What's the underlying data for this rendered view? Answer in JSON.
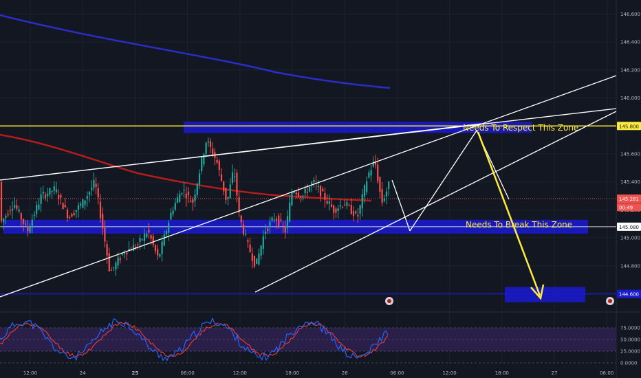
{
  "chart_data": {
    "type": "candlestick",
    "theme": {
      "background": "#131722",
      "grid": "#1e2230",
      "up": "#26a69a",
      "down": "#ef5350",
      "ma_red": "#b71c1c",
      "ma_blue": "#2a2ec9",
      "zone": "#1a1ad0",
      "level_yellow": "#ffeb3b",
      "osc_bg": "#2a1f48",
      "osc_fast": "#2962ff",
      "osc_slow": "#e53935",
      "trend": "#ffffff",
      "arrow": "#ffeb3b"
    },
    "price_axis": {
      "min": 144.5,
      "max": 146.7,
      "ticks": [
        "146.600",
        "146.400",
        "146.200",
        "146.000",
        "145.800",
        "145.600",
        "145.400",
        "145.200",
        "145.000",
        "144.800",
        "144.600"
      ],
      "tick_values": [
        146.6,
        146.4,
        146.2,
        146.0,
        145.8,
        145.6,
        145.4,
        145.2,
        145.0,
        144.8,
        144.6
      ]
    },
    "price_labels": [
      {
        "value": 145.8,
        "text": "145.800",
        "bg": "#ffeb3b",
        "fg": "#131722"
      },
      {
        "value": 145.281,
        "text": "145.281",
        "bg": "#ef5350",
        "fg": "#ffffff"
      },
      {
        "value": 145.22,
        "text": "00:49",
        "bg": "#ef5350",
        "fg": "#ffffff"
      },
      {
        "value": 145.08,
        "text": "145.080",
        "bg": "#ffffff",
        "fg": "#131722"
      },
      {
        "value": 144.6,
        "text": "144.600",
        "bg": "#1a1ad0",
        "fg": "#ffffff"
      }
    ],
    "time_axis": {
      "labels": [
        "12:00",
        "24",
        "25",
        "06:00",
        "12:00",
        "18:00",
        "26",
        "06:00",
        "12:00",
        "18:00",
        "27",
        "06:00"
      ],
      "bold": [
        false,
        false,
        true,
        false,
        false,
        false,
        false,
        false,
        false,
        false,
        false,
        false
      ]
    },
    "oscillator": {
      "ticks": [
        "75.0000",
        "50.0000",
        "25.0000",
        "0.0000"
      ],
      "tick_values": [
        75,
        50,
        25,
        0
      ],
      "band": [
        25,
        75
      ]
    },
    "annotations": [
      {
        "text": "Needs To Respect This Zone",
        "price": 145.83
      },
      {
        "text": "Needs To Break This Zone",
        "price": 145.11
      }
    ],
    "zones": [
      {
        "name": "resistance-zone",
        "top": 145.83,
        "bottom": 145.75
      },
      {
        "name": "break-zone",
        "top": 145.13,
        "bottom": 145.03
      },
      {
        "name": "target-zone",
        "top": 144.65,
        "bottom": 144.54
      }
    ],
    "levels": [
      {
        "name": "yellow-level",
        "value": 145.8,
        "color": "#ffeb3b"
      },
      {
        "name": "blue-level",
        "value": 144.6,
        "color": "#1a1ad0"
      }
    ]
  }
}
